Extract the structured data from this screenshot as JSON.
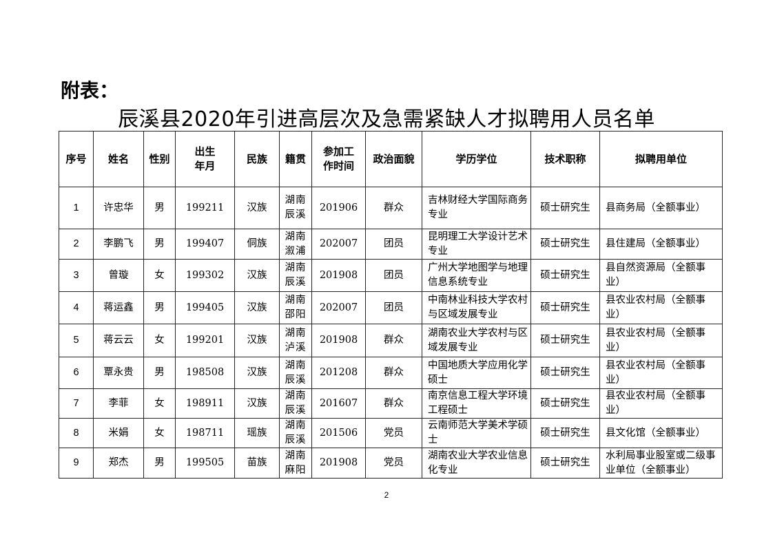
{
  "attachment_label": "附表：",
  "title": "辰溪县2020年引进高层次及急需紧缺人才拟聘用人员名单",
  "table": {
    "headers": [
      "序号",
      "姓名",
      "性别",
      "出生年月",
      "民族",
      "籍贯",
      "参加工作时间",
      "政治面貌",
      "学历学位",
      "技术职称",
      "拟聘用单位"
    ],
    "header_lines": {
      "birth": [
        "出生",
        "年月"
      ],
      "work": [
        "参加工",
        "作时间"
      ]
    },
    "rows": [
      [
        "1",
        "许忠华",
        "男",
        "199211",
        "汉族",
        "湖南辰溪",
        "201906",
        "群众",
        "吉林财经大学国际商务专业",
        "硕士研究生",
        "县商务局（全额事业）"
      ],
      [
        "2",
        "李鹏飞",
        "男",
        "199407",
        "侗族",
        "湖南溆浦",
        "202007",
        "团员",
        "昆明理工大学设计艺术专业",
        "硕士研究生",
        "县住建局（全额事业）"
      ],
      [
        "3",
        "曾璇",
        "女",
        "199302",
        "汉族",
        "湖南辰溪",
        "201908",
        "团员",
        "广州大学地图学与地理信息系统专业",
        "硕士研究生",
        "县自然资源局（全额事业）"
      ],
      [
        "4",
        "蒋运鑫",
        "男",
        "199405",
        "汉族",
        "湖南邵阳",
        "202007",
        "团员",
        "中南林业科技大学农村与区域发展专业",
        "硕士研究生",
        "县农业农村局（全额事业）"
      ],
      [
        "5",
        "蒋云云",
        "女",
        "199201",
        "汉族",
        "湖南泸溪",
        "201908",
        "群众",
        "湖南农业大学农村与区域发展专业",
        "硕士研究生",
        "县农业农村局（全额事业）"
      ],
      [
        "6",
        "覃永贵",
        "男",
        "198508",
        "汉族",
        "湖南辰溪",
        "201208",
        "群众",
        "中国地质大学应用化学硕士",
        "硕士研究生",
        "县农业农村局（全额事业）"
      ],
      [
        "7",
        "李菲",
        "女",
        "198911",
        "汉族",
        "湖南辰溪",
        "201607",
        "群众",
        "南京信息工程大学环境工程硕士",
        "硕士研究生",
        "县农业农村局（全额事业）"
      ],
      [
        "8",
        "米娟",
        "女",
        "198711",
        "瑶族",
        "湖南辰溪",
        "201506",
        "党员",
        "云南师范大学美术学硕士",
        "硕士研究生",
        "县文化馆（全额事业）"
      ],
      [
        "9",
        "郑杰",
        "男",
        "199505",
        "苗族",
        "湖南麻阳",
        "201908",
        "党员",
        "湖南农业大学农业信息化专业",
        "硕士研究生",
        "水利局事业股室或二级事业单位（全额事业）"
      ]
    ]
  },
  "page_number": "2"
}
